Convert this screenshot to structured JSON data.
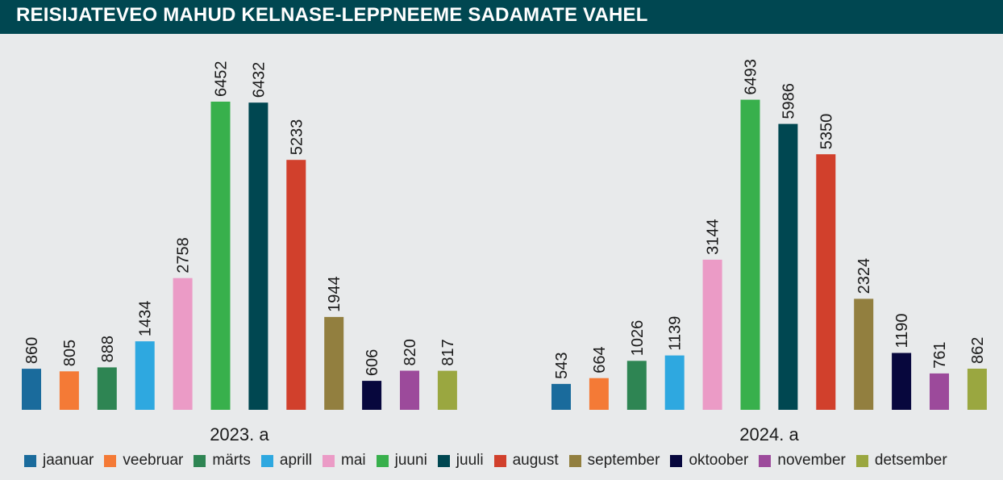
{
  "title": "REISIJATEVEO MAHUD KELNASE-LEPPNEEME SADAMATE VAHEL",
  "chart_data": {
    "type": "bar",
    "title": "REISIJATEVEO MAHUD KELNASE-LEPPNEEME SADAMATE VAHEL",
    "categories": [
      "2023. a",
      "2024. a"
    ],
    "series": [
      {
        "name": "jaanuar",
        "color": "#1a6b9c",
        "values": [
          860,
          543
        ]
      },
      {
        "name": "veebruar",
        "color": "#f47a36",
        "values": [
          805,
          664
        ]
      },
      {
        "name": "märts",
        "color": "#2e8553",
        "values": [
          888,
          1026
        ]
      },
      {
        "name": "aprill",
        "color": "#2ea8e0",
        "values": [
          1434,
          1139
        ]
      },
      {
        "name": "mai",
        "color": "#eb9bc6",
        "values": [
          2758,
          3144
        ]
      },
      {
        "name": "juuni",
        "color": "#38b04c",
        "values": [
          6452,
          6493
        ]
      },
      {
        "name": "juuli",
        "color": "#004751",
        "values": [
          6432,
          5986
        ]
      },
      {
        "name": "august",
        "color": "#d1402c",
        "values": [
          5233,
          5350
        ]
      },
      {
        "name": "september",
        "color": "#927f3f",
        "values": [
          1944,
          2324
        ]
      },
      {
        "name": "oktoober",
        "color": "#07073d",
        "values": [
          606,
          1190
        ]
      },
      {
        "name": "november",
        "color": "#9c4a9b",
        "values": [
          820,
          761
        ]
      },
      {
        "name": "detsember",
        "color": "#9aa740",
        "values": [
          817,
          862
        ]
      }
    ],
    "ylim": [
      0,
      6600
    ],
    "grid": false,
    "legend_position": "bottom"
  }
}
